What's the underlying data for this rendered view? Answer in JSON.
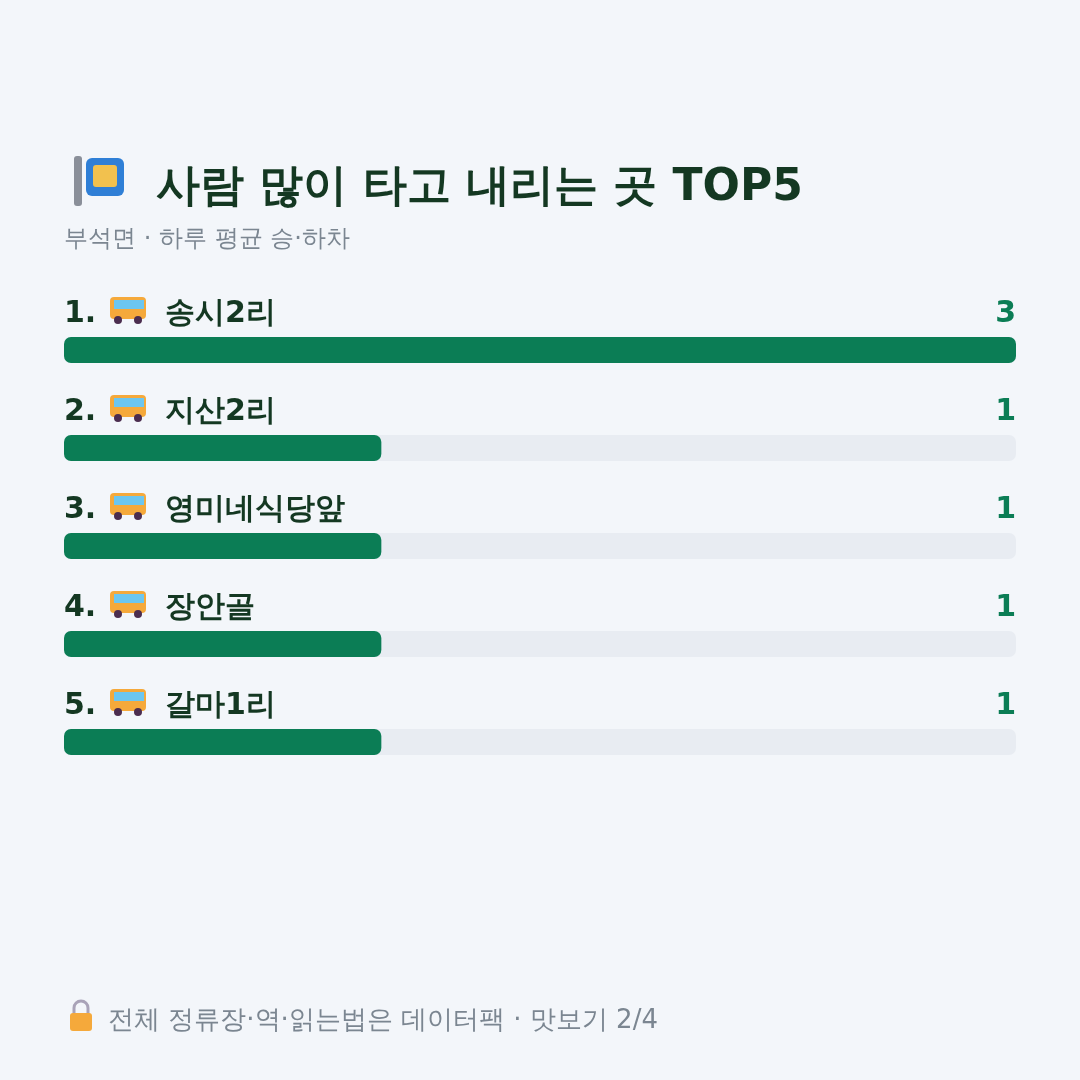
{
  "chart_data": {
    "type": "bar",
    "orientation": "horizontal",
    "title": "사람 많이 타고 내리는 곳 TOP5",
    "subtitle": "부석면 · 하루 평균 승·하차",
    "categories": [
      "1. 송시2리",
      "2. 지산2리",
      "3. 영미네식당앞",
      "4. 장안골",
      "5. 갈마1리"
    ],
    "values": [
      3,
      1,
      1,
      1,
      1
    ],
    "color": "#0b7d55",
    "xlim": [
      0,
      3
    ],
    "data_labels": true,
    "annotations": [
      "전체 정류장·역·읽는법은 데이터팩 · 맛보기 2/4"
    ]
  }
}
